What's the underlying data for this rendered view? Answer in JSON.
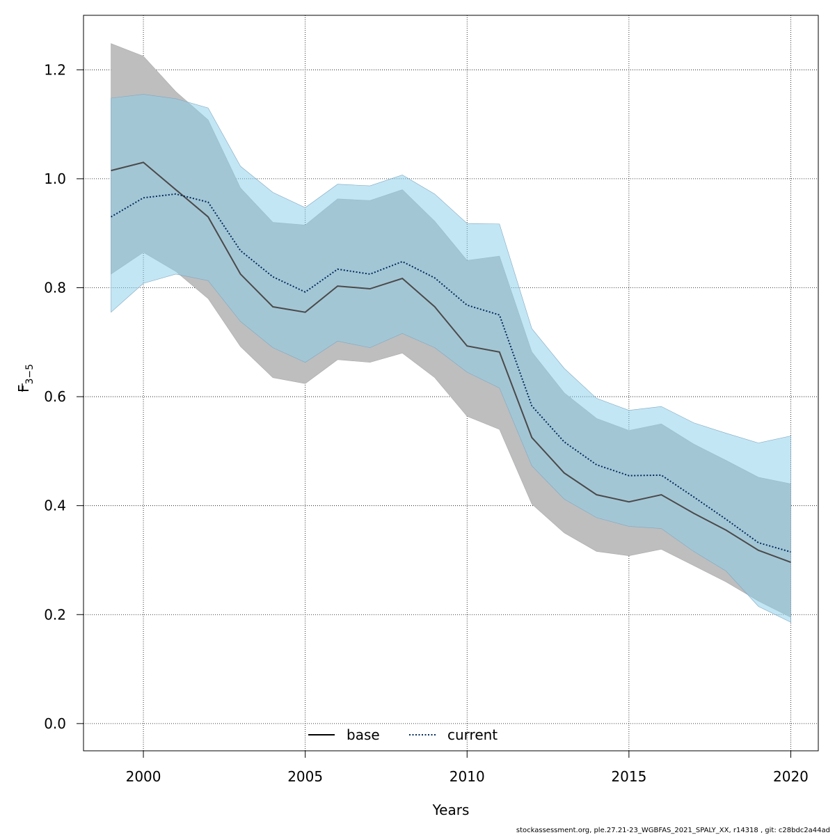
{
  "chart_data": {
    "type": "line",
    "title": "",
    "xlabel": "Years",
    "ylabel_main": "F",
    "ylabel_sub": "3−5",
    "xlim": [
      1998.15,
      2020.85
    ],
    "ylim": [
      -0.05,
      1.3
    ],
    "xticks": [
      2000,
      2005,
      2010,
      2015,
      2020
    ],
    "yticks": [
      0.0,
      0.2,
      0.4,
      0.6,
      0.8,
      1.0,
      1.2
    ],
    "grid": true,
    "legend_position": "bottom",
    "x": [
      1999,
      2000,
      2001,
      2002,
      2003,
      2004,
      2005,
      2006,
      2007,
      2008,
      2009,
      2010,
      2011,
      2012,
      2013,
      2014,
      2015,
      2016,
      2017,
      2018,
      2019,
      2020
    ],
    "series": [
      {
        "name": "base",
        "line_style": "solid",
        "line_color": "#4a4a4a",
        "band_color": "#bebebe",
        "values": [
          1.015,
          1.03,
          0.98,
          0.93,
          0.825,
          0.765,
          0.755,
          0.803,
          0.798,
          0.817,
          0.765,
          0.693,
          0.682,
          0.525,
          0.46,
          0.42,
          0.407,
          0.42,
          0.386,
          0.355,
          0.318,
          0.296
        ],
        "lower": [
          0.825,
          0.865,
          0.83,
          0.78,
          0.692,
          0.635,
          0.624,
          0.668,
          0.663,
          0.68,
          0.635,
          0.564,
          0.54,
          0.403,
          0.35,
          0.316,
          0.308,
          0.32,
          0.29,
          0.26,
          0.225,
          0.195
        ],
        "upper": [
          1.248,
          1.225,
          1.16,
          1.108,
          0.983,
          0.92,
          0.915,
          0.963,
          0.96,
          0.98,
          0.922,
          0.85,
          0.858,
          0.682,
          0.607,
          0.56,
          0.538,
          0.55,
          0.513,
          0.483,
          0.452,
          0.44
        ]
      },
      {
        "name": "current",
        "line_style": "dotted",
        "line_color": "#002a5c",
        "band_color": "#87ceeb",
        "values": [
          0.93,
          0.965,
          0.972,
          0.957,
          0.868,
          0.82,
          0.792,
          0.834,
          0.825,
          0.848,
          0.818,
          0.768,
          0.75,
          0.583,
          0.517,
          0.475,
          0.455,
          0.456,
          0.416,
          0.375,
          0.332,
          0.315
        ],
        "lower": [
          0.755,
          0.808,
          0.825,
          0.813,
          0.738,
          0.69,
          0.663,
          0.702,
          0.69,
          0.716,
          0.69,
          0.645,
          0.616,
          0.473,
          0.412,
          0.378,
          0.362,
          0.358,
          0.316,
          0.28,
          0.215,
          0.186
        ],
        "upper": [
          1.148,
          1.155,
          1.147,
          1.13,
          1.023,
          0.975,
          0.947,
          0.99,
          0.987,
          1.007,
          0.972,
          0.918,
          0.917,
          0.725,
          0.652,
          0.597,
          0.575,
          0.582,
          0.552,
          0.533,
          0.515,
          0.528
        ]
      }
    ]
  },
  "footer": {
    "note": "stockassessment.org, ple.27.21-23_WGBFAS_2021_SPALY_XX, r14318 , git: c28bdc2a44ad"
  }
}
